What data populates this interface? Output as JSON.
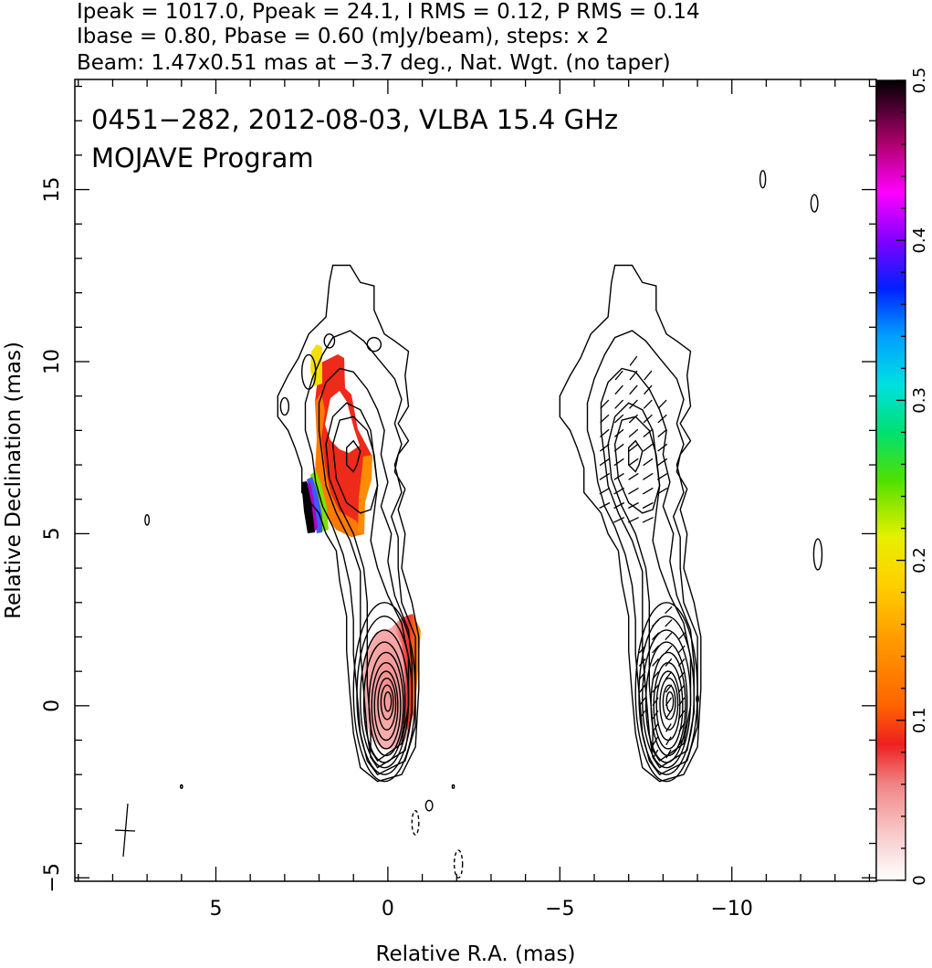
{
  "header": {
    "line1": "Ipeak = 1017.0, Ppeak = 24.1, I RMS = 0.12, P RMS = 0.14",
    "line2": "Ibase = 0.80, Pbase = 0.60 (mJy/beam), steps: x 2",
    "line3": "Beam: 1.47x0.51 mas at −3.7 deg., Nat. Wgt. (no taper)"
  },
  "chart_data": {
    "type": "heatmap",
    "title": "0451−282, 2012-08-03, VLBA 15.4 GHz",
    "subtitle": "MOJAVE Program",
    "xlabel": "Relative R.A. (mas)",
    "ylabel": "Relative Declination (mas)",
    "xlim": [
      9.1,
      -14.2
    ],
    "ylim": [
      -5.1,
      18.2
    ],
    "xticks": [
      {
        "value": 5,
        "label": "5"
      },
      {
        "value": 0,
        "label": "0"
      },
      {
        "value": -5,
        "label": "−5"
      },
      {
        "value": -10,
        "label": "−10"
      }
    ],
    "yticks": [
      {
        "value": -5,
        "label": "−5"
      },
      {
        "value": 0,
        "label": "0"
      },
      {
        "value": 5,
        "label": "5"
      },
      {
        "value": 10,
        "label": "10"
      },
      {
        "value": 15,
        "label": "15"
      }
    ],
    "colorbar": {
      "range": [
        0,
        0.5
      ],
      "ticks": [
        {
          "value": 0,
          "label": "0"
        },
        {
          "value": 0.1,
          "label": "0.1"
        },
        {
          "value": 0.2,
          "label": "0.2"
        },
        {
          "value": 0.3,
          "label": "0.3"
        },
        {
          "value": 0.4,
          "label": "0.4"
        },
        {
          "value": 0.5,
          "label": "0.5"
        }
      ]
    },
    "beam": {
      "major_mas": 1.47,
      "minor_mas": 0.51,
      "pa_deg": -3.7
    },
    "panels": [
      {
        "name": "left",
        "x_offset": 0
      },
      {
        "name": "right",
        "x_offset": -8.2
      }
    ],
    "contour_regions": [
      {
        "name": "core",
        "x": 0.0,
        "y": 0.0,
        "levels": [
          0.8,
          1.6,
          3.2,
          6.4,
          12.8,
          25.6,
          51.2,
          102.4,
          204.8,
          409.6,
          819.2
        ]
      },
      {
        "name": "jet",
        "x": 1.1,
        "y": 7.2,
        "levels": [
          0.8,
          1.6,
          3.2,
          6.4,
          12.8
        ]
      }
    ],
    "fracpol_regions": [
      {
        "name": "core",
        "x": 0.2,
        "y": 0.0,
        "frac_pol": 0.05
      },
      {
        "name": "jet-main",
        "x": 1.2,
        "y": 7.3,
        "frac_pol": 0.12
      },
      {
        "name": "jet-edge",
        "x": 2.1,
        "y": 5.5,
        "frac_pol": 0.5
      },
      {
        "name": "jet-tip",
        "x": 2.1,
        "y": 9.9,
        "frac_pol": 0.19
      }
    ]
  }
}
